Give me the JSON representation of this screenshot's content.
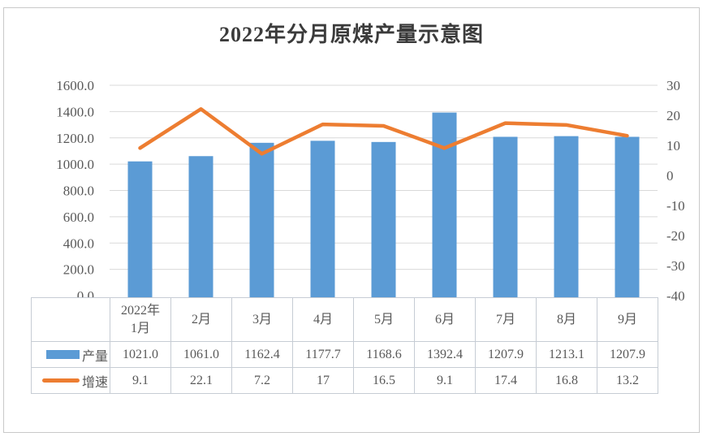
{
  "title": "2022年分月原煤产量示意图",
  "colors": {
    "bar": "#5b9bd5",
    "line": "#ed7d31",
    "gridline": "#d9d9d9",
    "table_border": "#c6ccd4",
    "frame_border": "#c9c9c9",
    "axis_text": "#595959",
    "value_text": "#404040",
    "title_text": "#3b3b3b"
  },
  "chart_data": {
    "type": "bar+line combo",
    "title": "2022年分月原煤产量示意图",
    "categories": [
      "2022年1月",
      "2月",
      "3月",
      "4月",
      "5月",
      "6月",
      "7月",
      "8月",
      "9月"
    ],
    "category_display": [
      "2022年\n1月",
      "2月",
      "3月",
      "4月",
      "5月",
      "6月",
      "7月",
      "8月",
      "9月"
    ],
    "series": [
      {
        "name": "产量",
        "type": "bar",
        "axis": "left",
        "color": "#5b9bd5",
        "values": [
          1021.0,
          1061.0,
          1162.4,
          1177.7,
          1168.6,
          1392.4,
          1207.9,
          1213.1,
          1207.9
        ],
        "display": [
          "1021.0",
          "1061.0",
          "1162.4",
          "1177.7",
          "1168.6",
          "1392.4",
          "1207.9",
          "1213.1",
          "1207.9"
        ]
      },
      {
        "name": "增速",
        "type": "line",
        "axis": "right",
        "color": "#ed7d31",
        "values": [
          9.1,
          22.1,
          7.2,
          17,
          16.5,
          9.1,
          17.4,
          16.8,
          13.2
        ],
        "display": [
          "9.1",
          "22.1",
          "7.2",
          "17",
          "16.5",
          "9.1",
          "17.4",
          "16.8",
          "13.2"
        ]
      }
    ],
    "left_axis": {
      "min": 0,
      "max": 1600,
      "step": 200,
      "format": "one_decimal"
    },
    "right_axis": {
      "min": -40,
      "max": 30,
      "step": 10
    },
    "grid": true,
    "legend_position": "data-table-left-column"
  }
}
